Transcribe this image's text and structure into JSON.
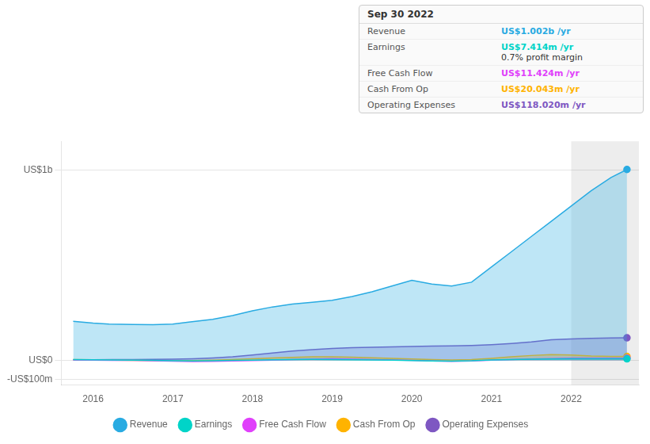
{
  "chart_data": {
    "type": "area",
    "series": [
      {
        "name": "Revenue",
        "color": "#29abe2",
        "x": [
          2015.75,
          2016.0,
          2016.2,
          2016.5,
          2016.75,
          2017.0,
          2017.2,
          2017.5,
          2017.75,
          2018.0,
          2018.25,
          2018.5,
          2018.75,
          2019.0,
          2019.25,
          2019.5,
          2019.75,
          2020.0,
          2020.25,
          2020.5,
          2020.75,
          2021.0,
          2021.25,
          2021.5,
          2021.75,
          2022.0,
          2022.25,
          2022.5,
          2022.7
        ],
        "values": [
          205000000,
          195000000,
          190000000,
          188000000,
          187000000,
          190000000,
          200000000,
          215000000,
          235000000,
          260000000,
          280000000,
          295000000,
          305000000,
          315000000,
          335000000,
          360000000,
          390000000,
          420000000,
          400000000,
          390000000,
          410000000,
          490000000,
          570000000,
          650000000,
          730000000,
          810000000,
          890000000,
          960000000,
          1002000000
        ]
      },
      {
        "name": "Earnings",
        "color": "#00d4c8",
        "x": [
          2015.75,
          2016.0,
          2016.25,
          2016.5,
          2016.75,
          2017.0,
          2017.25,
          2017.5,
          2017.75,
          2018.0,
          2018.25,
          2018.5,
          2018.75,
          2019.0,
          2019.25,
          2019.5,
          2019.75,
          2020.0,
          2020.25,
          2020.5,
          2020.75,
          2021.0,
          2021.25,
          2021.5,
          2021.75,
          2022.0,
          2022.25,
          2022.5,
          2022.7
        ],
        "values": [
          4000000,
          3000000,
          2000000,
          1000000,
          -1000000,
          -3000000,
          -4000000,
          -3000000,
          -1000000,
          1000000,
          3000000,
          4000000,
          5000000,
          4000000,
          3000000,
          2000000,
          1000000,
          -2000000,
          -4000000,
          -5000000,
          -3000000,
          2000000,
          4000000,
          6000000,
          7000000,
          8000000,
          7500000,
          7400000,
          7414000
        ]
      },
      {
        "name": "Free Cash Flow",
        "color": "#e040fb",
        "x": [
          2015.75,
          2016.0,
          2016.25,
          2016.5,
          2016.75,
          2017.0,
          2017.25,
          2017.5,
          2017.75,
          2018.0,
          2018.25,
          2018.5,
          2018.75,
          2019.0,
          2019.25,
          2019.5,
          2019.75,
          2020.0,
          2020.25,
          2020.5,
          2020.75,
          2021.0,
          2021.25,
          2021.5,
          2021.75,
          2022.0,
          2022.25,
          2022.5,
          2022.7
        ],
        "values": [
          2000000,
          1000000,
          0,
          -1000000,
          -3000000,
          -5000000,
          -7000000,
          -6000000,
          -4000000,
          -2000000,
          1000000,
          4000000,
          6000000,
          8000000,
          6000000,
          4000000,
          2000000,
          -1000000,
          -4000000,
          -6000000,
          -4000000,
          1000000,
          4000000,
          7000000,
          9000000,
          11000000,
          11200000,
          11400000,
          11424000
        ]
      },
      {
        "name": "Cash From Op",
        "color": "#ffb300",
        "x": [
          2015.75,
          2016.0,
          2016.25,
          2016.5,
          2016.75,
          2017.0,
          2017.25,
          2017.5,
          2017.75,
          2018.0,
          2018.25,
          2018.5,
          2018.75,
          2019.0,
          2019.25,
          2019.5,
          2019.75,
          2020.0,
          2020.25,
          2020.5,
          2020.75,
          2021.0,
          2021.25,
          2021.5,
          2021.75,
          2022.0,
          2022.25,
          2022.5,
          2022.7
        ],
        "values": [
          4000000,
          3000000,
          1000000,
          -1000000,
          -2000000,
          -4000000,
          -2000000,
          1000000,
          4000000,
          8000000,
          12000000,
          15000000,
          18000000,
          18000000,
          16000000,
          13000000,
          10000000,
          7000000,
          4000000,
          2000000,
          4000000,
          10000000,
          18000000,
          25000000,
          30000000,
          28000000,
          22000000,
          20000000,
          20043000
        ]
      },
      {
        "name": "Operating Expenses",
        "color": "#7e57c2",
        "x": [
          2015.75,
          2016.0,
          2016.25,
          2016.5,
          2016.75,
          2017.0,
          2017.25,
          2017.5,
          2017.75,
          2018.0,
          2018.25,
          2018.5,
          2018.75,
          2019.0,
          2019.25,
          2019.5,
          2019.75,
          2020.0,
          2020.25,
          2020.5,
          2020.75,
          2021.0,
          2021.25,
          2021.5,
          2021.75,
          2022.0,
          2022.25,
          2022.5,
          2022.7
        ],
        "values": [
          3000000,
          3000000,
          4000000,
          4000000,
          5000000,
          6000000,
          8000000,
          12000000,
          18000000,
          28000000,
          38000000,
          48000000,
          56000000,
          62000000,
          66000000,
          68000000,
          70000000,
          72000000,
          74000000,
          76000000,
          78000000,
          82000000,
          88000000,
          96000000,
          108000000,
          112000000,
          115000000,
          117000000,
          118020000
        ]
      }
    ],
    "xlim": [
      2015.6,
      2022.85
    ],
    "xticks": [
      2016,
      2017,
      2018,
      2019,
      2020,
      2021,
      2022
    ],
    "ylim": [
      -130000000,
      1150000000
    ],
    "yticks": [
      {
        "value": -100000000,
        "label": "-US$100m"
      },
      {
        "value": 0,
        "label": "US$0"
      },
      {
        "value": 1000000000,
        "label": "US$1b"
      }
    ],
    "grid": true,
    "legend": "bottom",
    "shaded_x": [
      2022.0,
      2022.85
    ],
    "info_box": {
      "title": "Sep 30 2022",
      "rows": [
        {
          "label": "Revenue",
          "value": "US$1.002b /yr",
          "color": "#29abe2"
        },
        {
          "label": "Earnings",
          "value": "US$7.414m /yr",
          "color": "#00d4c8",
          "note": "0.7% profit margin"
        },
        {
          "label": "Free Cash Flow",
          "value": "US$11.424m /yr",
          "color": "#e040fb"
        },
        {
          "label": "Cash From Op",
          "value": "US$20.043m /yr",
          "color": "#ffb300"
        },
        {
          "label": "Operating Expenses",
          "value": "US$118.020m /yr",
          "color": "#7e57c2"
        }
      ]
    }
  }
}
